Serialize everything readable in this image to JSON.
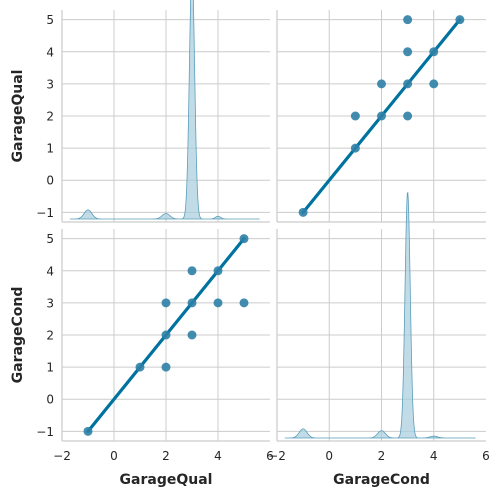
{
  "chart_data": {
    "type": "scatter",
    "kind": "pairplot",
    "variables": [
      "GarageQual",
      "GarageCond"
    ],
    "grid": true,
    "colors": {
      "point": "#2e7fa6",
      "line": "#0072a0",
      "kde_fill": "#a7cddd",
      "kde_line": "#5a9ebb"
    },
    "x_ticks": [
      "−2",
      "0",
      "2",
      "4",
      "6"
    ],
    "y_ticks": [
      "−1",
      "0",
      "1",
      "2",
      "3",
      "4",
      "5"
    ],
    "xlim": [
      -2,
      6
    ],
    "ylim": [
      -1.3,
      5.3
    ],
    "xlabels": [
      "GarageQual",
      "GarageCond"
    ],
    "ylabels": [
      "GarageQual",
      "GarageCond"
    ],
    "points": [
      {
        "a": -1,
        "b": -1
      },
      {
        "a": 1,
        "b": 1
      },
      {
        "a": 2,
        "b": 1
      },
      {
        "a": 2,
        "b": 2
      },
      {
        "a": 2,
        "b": 3
      },
      {
        "a": 3,
        "b": 2
      },
      {
        "a": 3,
        "b": 3
      },
      {
        "a": 3,
        "b": 4
      },
      {
        "a": 4,
        "b": 3
      },
      {
        "a": 4,
        "b": 4
      },
      {
        "a": 5,
        "b": 5
      },
      {
        "a": 5,
        "b": 3
      }
    ],
    "regression": {
      "x": [
        -1,
        5
      ],
      "y": [
        -1,
        5
      ]
    },
    "kde_components": [
      {
        "mu": -1,
        "sigma": 0.15,
        "w": 0.05
      },
      {
        "mu": 2,
        "sigma": 0.15,
        "w": 0.03
      },
      {
        "mu": 3,
        "sigma": 0.1,
        "w": 0.92
      },
      {
        "mu": 4,
        "sigma": 0.1,
        "w": 0.01
      }
    ],
    "kde_components_cond": [
      {
        "mu": -1,
        "sigma": 0.15,
        "w": 0.05
      },
      {
        "mu": 2,
        "sigma": 0.15,
        "w": 0.04
      },
      {
        "mu": 3,
        "sigma": 0.1,
        "w": 0.9
      },
      {
        "mu": 4,
        "sigma": 0.15,
        "w": 0.01
      }
    ]
  }
}
